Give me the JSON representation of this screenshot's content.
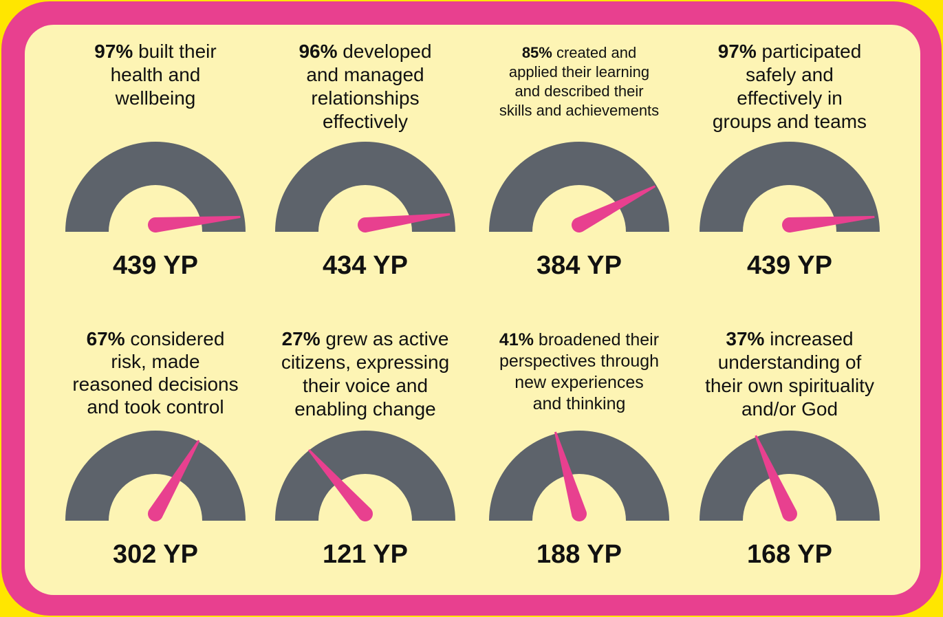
{
  "chart_data": {
    "type": "gauge",
    "ylim": [
      0,
      100
    ],
    "values": [
      97,
      96,
      85,
      97,
      67,
      27,
      41,
      37
    ],
    "value_labels": [
      "97%",
      "96%",
      "85%",
      "97%",
      "67%",
      "27%",
      "41%",
      "37%"
    ],
    "descriptions": [
      [
        "built their",
        "health and",
        "wellbeing"
      ],
      [
        "developed",
        "and managed",
        "relationships",
        "effectively"
      ],
      [
        "created and",
        "applied their learning",
        "and described their",
        "skills and achievements"
      ],
      [
        "participated",
        "safely and",
        "effectively in",
        "groups and teams"
      ],
      [
        "considered",
        "risk, made",
        "reasoned decisions",
        "and took control"
      ],
      [
        "grew as active",
        "citizens, expressing",
        "their voice and",
        "enabling change"
      ],
      [
        "broadened their",
        "perspectives through",
        "new experiences",
        "and thinking"
      ],
      [
        "increased",
        "understanding of",
        "their own spirituality",
        "and/or God"
      ]
    ],
    "yp_labels": [
      "439 YP",
      "434 YP",
      "384 YP",
      "439 YP",
      "302 YP",
      "121 YP",
      "188 YP",
      "168 YP"
    ],
    "gauge_color": "#5d636b",
    "needle_color": "#e8408f"
  }
}
